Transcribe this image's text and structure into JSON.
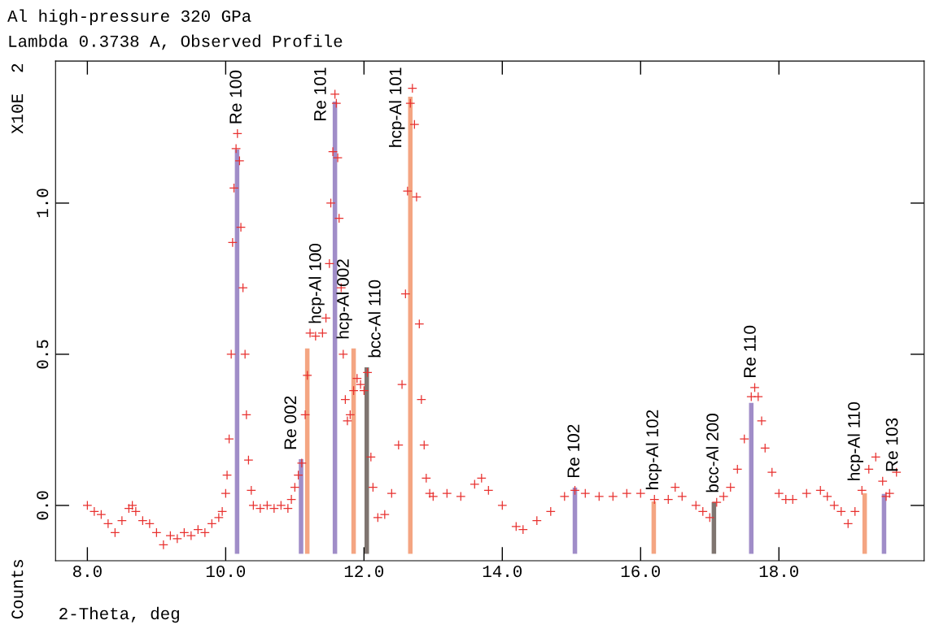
{
  "chart_data": {
    "type": "scatter",
    "title": "Al high-pressure 320 GPa",
    "subtitle": "Lambda 0.3738 A, Observed Profile",
    "xlabel": "2-Theta, deg",
    "ylabel": "Counts",
    "xlim": [
      7.54,
      20.1
    ],
    "ylim": [
      -0.183,
      1.47
    ],
    "xticks": [
      {
        "value": 8,
        "label": "8.0"
      },
      {
        "value": 10,
        "label": "10.0"
      },
      {
        "value": 12,
        "label": "12.0"
      },
      {
        "value": 14,
        "label": "14.0"
      },
      {
        "value": 16,
        "label": "16.0"
      },
      {
        "value": 18,
        "label": "18.0"
      }
    ],
    "yticks": [
      {
        "value": 0,
        "label": "0.0"
      },
      {
        "value": 0.5,
        "label": "0.5"
      },
      {
        "value": 1,
        "label": "1.0"
      }
    ],
    "grid": false,
    "legend": false,
    "series": [
      {
        "color": "#e8312f",
        "marker": "cross",
        "x": [
          8.0,
          8.1,
          8.2,
          8.3,
          8.4,
          8.5,
          8.6,
          8.65,
          8.7,
          8.8,
          8.9,
          9.0,
          9.1,
          9.2,
          9.3,
          9.4,
          9.5,
          9.6,
          9.7,
          9.8,
          9.9,
          9.95,
          10.0,
          10.02,
          10.05,
          10.08,
          10.1,
          10.12,
          10.15,
          10.17,
          10.2,
          10.22,
          10.25,
          10.28,
          10.3,
          10.33,
          10.37,
          10.4,
          10.5,
          10.6,
          10.7,
          10.8,
          10.9,
          10.95,
          11.0,
          11.05,
          11.1,
          11.15,
          11.18,
          11.22,
          11.3,
          11.4,
          11.45,
          11.5,
          11.52,
          11.55,
          11.58,
          11.6,
          11.62,
          11.64,
          11.67,
          11.7,
          11.73,
          11.76,
          11.8,
          11.85,
          11.9,
          11.95,
          12.0,
          12.05,
          12.1,
          12.13,
          12.2,
          12.3,
          12.4,
          12.5,
          12.55,
          12.6,
          12.63,
          12.67,
          12.7,
          12.73,
          12.76,
          12.8,
          12.83,
          12.87,
          12.9,
          12.95,
          13.0,
          13.2,
          13.4,
          13.6,
          13.7,
          13.8,
          14.0,
          14.2,
          14.3,
          14.5,
          14.7,
          14.9,
          15.05,
          15.2,
          15.4,
          15.6,
          15.8,
          16.0,
          16.2,
          16.4,
          16.5,
          16.6,
          16.8,
          16.9,
          17.0,
          17.1,
          17.2,
          17.3,
          17.4,
          17.5,
          17.6,
          17.65,
          17.7,
          17.75,
          17.8,
          17.9,
          18.0,
          18.1,
          18.2,
          18.4,
          18.6,
          18.7,
          18.8,
          18.9,
          19.0,
          19.1,
          19.2,
          19.3,
          19.4,
          19.5,
          19.55,
          19.6,
          19.7
        ],
        "values": [
          0.0,
          -0.02,
          -0.03,
          -0.06,
          -0.09,
          -0.05,
          -0.01,
          0.0,
          -0.02,
          -0.05,
          -0.06,
          -0.09,
          -0.13,
          -0.1,
          -0.11,
          -0.09,
          -0.1,
          -0.08,
          -0.09,
          -0.06,
          -0.04,
          -0.02,
          0.04,
          0.1,
          0.22,
          0.5,
          0.87,
          1.05,
          1.18,
          1.23,
          1.14,
          0.92,
          0.72,
          0.5,
          0.3,
          0.15,
          0.05,
          0.0,
          -0.01,
          0.0,
          -0.01,
          0.0,
          -0.01,
          0.02,
          0.06,
          0.1,
          0.14,
          0.3,
          0.43,
          0.57,
          0.56,
          0.57,
          0.62,
          0.8,
          1.0,
          1.17,
          1.36,
          1.33,
          1.15,
          0.95,
          0.72,
          0.5,
          0.35,
          0.28,
          0.3,
          0.38,
          0.42,
          0.4,
          0.38,
          0.44,
          0.16,
          0.06,
          -0.04,
          -0.03,
          0.04,
          0.2,
          0.4,
          0.7,
          1.04,
          1.33,
          1.38,
          1.26,
          1.02,
          0.6,
          0.35,
          0.2,
          0.09,
          0.04,
          0.03,
          0.04,
          0.03,
          0.07,
          0.09,
          0.05,
          0.0,
          -0.07,
          -0.08,
          -0.05,
          -0.02,
          0.03,
          0.05,
          0.04,
          0.03,
          0.03,
          0.04,
          0.04,
          0.02,
          0.02,
          0.06,
          0.03,
          0.0,
          -0.02,
          -0.04,
          0.01,
          0.03,
          0.06,
          0.12,
          0.22,
          0.36,
          0.39,
          0.36,
          0.28,
          0.19,
          0.11,
          0.04,
          0.02,
          0.02,
          0.04,
          0.05,
          0.03,
          0.0,
          -0.02,
          -0.06,
          -0.02,
          0.05,
          0.12,
          0.16,
          0.08,
          0.03,
          0.04,
          0.11
        ]
      },
      {
        "type": "bar",
        "x": [
          10.165,
          11.09,
          11.18,
          11.58,
          11.85,
          12.04,
          12.67,
          15.05,
          16.19,
          17.06,
          17.6,
          19.24,
          19.52
        ],
        "base": [
          -0.16,
          -0.16,
          -0.16,
          -0.16,
          -0.16,
          -0.16,
          -0.16,
          -0.16,
          -0.16,
          -0.16,
          -0.16,
          -0.16,
          -0.16
        ],
        "values": [
          1.337,
          0.313,
          0.679,
          1.496,
          0.679,
          0.617,
          1.512,
          0.219,
          0.173,
          0.171,
          0.499,
          0.2,
          0.198
        ],
        "colors": [
          "#a08dc8",
          "#a08dc8",
          "#f4a582",
          "#a08dc8",
          "#f4a582",
          "#7f7570",
          "#f4a582",
          "#a08dc8",
          "#f4a582",
          "#7f7570",
          "#a08dc8",
          "#f4a582",
          "#a08dc8"
        ]
      }
    ],
    "annotations": [
      "X10E  2",
      {
        "text": "Re 100",
        "x": 10.165,
        "y": 1.177
      },
      {
        "text": "Re 002",
        "x": 11.09,
        "y": 0.153
      },
      {
        "text": "hcp-Al 100",
        "x": 11.18,
        "y": 0.519
      },
      {
        "text": "Re 101",
        "x": 11.58,
        "y": 1.336
      },
      {
        "text": "hcp-Al 002",
        "x": 11.85,
        "y": 0.519
      },
      {
        "text": "bcc-Al 110",
        "x": 12.04,
        "y": 0.457
      },
      {
        "text": "hcp-Al 101",
        "x": 12.67,
        "y": 1.352
      },
      {
        "text": "Re 102",
        "x": 15.05,
        "y": 0.059
      },
      {
        "text": "hcp-Al 102",
        "x": 16.19,
        "y": 0.013
      },
      {
        "text": "bcc-Al 200",
        "x": 17.06,
        "y": 0.011
      },
      {
        "text": "Re 110",
        "x": 17.6,
        "y": 0.339
      },
      {
        "text": "hcp-Al 110",
        "x": 19.24,
        "y": 0.04
      },
      {
        "text": "Re 103",
        "x": 19.52,
        "y": 0.038
      }
    ]
  }
}
